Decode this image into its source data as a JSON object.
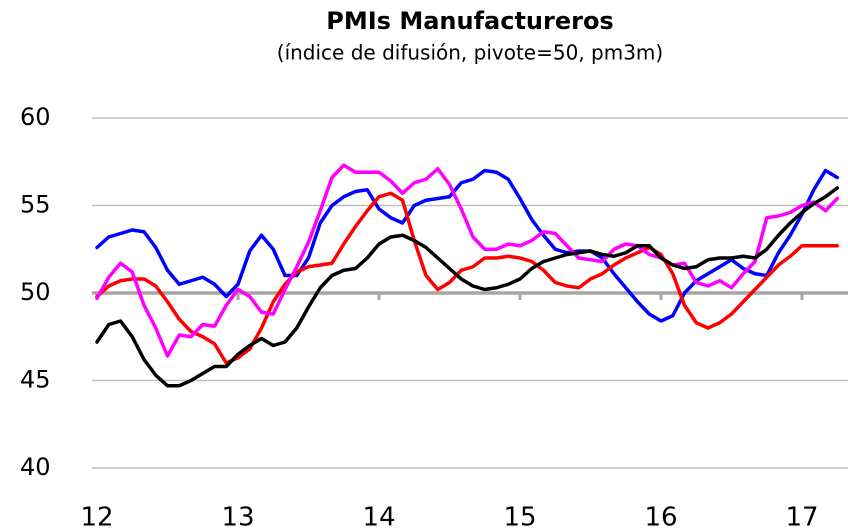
{
  "chart_data": {
    "type": "line",
    "title": "PMIs Manufactureros",
    "subtitle": "(índice de difusión, pivote=50, pm3m)",
    "categories": [
      "12",
      null,
      null,
      null,
      null,
      null,
      null,
      null,
      null,
      null,
      null,
      null,
      "13",
      null,
      null,
      null,
      null,
      null,
      null,
      null,
      null,
      null,
      null,
      null,
      "14",
      null,
      null,
      null,
      null,
      null,
      null,
      null,
      null,
      null,
      null,
      null,
      "15",
      null,
      null,
      null,
      null,
      null,
      null,
      null,
      null,
      null,
      null,
      null,
      "16",
      null,
      null,
      null,
      null,
      null,
      null,
      null,
      null,
      null,
      null,
      null,
      "17",
      null,
      null,
      null
    ],
    "series": [
      {
        "color": "#0000ff",
        "values": [
          52.6,
          53.2,
          53.4,
          53.6,
          53.5,
          52.6,
          51.3,
          50.5,
          50.7,
          50.9,
          50.5,
          49.8,
          50.5,
          52.4,
          53.3,
          52.5,
          51.0,
          51.0,
          52.0,
          54.0,
          55.0,
          55.5,
          55.8,
          55.9,
          54.8,
          54.3,
          54.0,
          55.0,
          55.3,
          55.4,
          55.5,
          56.3,
          56.5,
          57.0,
          56.9,
          56.5,
          55.4,
          54.2,
          53.3,
          52.5,
          52.3,
          52.4,
          52.4,
          52.0,
          51.1,
          50.3,
          49.5,
          48.8,
          48.4,
          48.7,
          50.0,
          50.7,
          51.1,
          51.5,
          51.9,
          51.4,
          51.1,
          51.0,
          52.3,
          53.3,
          54.5,
          55.9,
          57.0,
          56.6
        ]
      },
      {
        "color": "#ff0000",
        "values": [
          49.8,
          50.4,
          50.7,
          50.8,
          50.8,
          50.4,
          49.5,
          48.5,
          47.8,
          47.5,
          47.1,
          46.0,
          46.3,
          46.8,
          48.0,
          49.5,
          50.5,
          51.2,
          51.5,
          51.6,
          51.7,
          52.8,
          53.8,
          54.7,
          55.5,
          55.7,
          55.3,
          53.0,
          51.0,
          50.2,
          50.6,
          51.3,
          51.5,
          52.0,
          52.0,
          52.1,
          52.0,
          51.8,
          51.3,
          50.6,
          50.4,
          50.3,
          50.8,
          51.1,
          51.6,
          52.0,
          52.3,
          52.6,
          52.2,
          51.1,
          49.3,
          48.3,
          48.0,
          48.3,
          48.8,
          49.5,
          50.2,
          50.9,
          51.6,
          52.1,
          52.7,
          52.7,
          52.7,
          52.7
        ]
      },
      {
        "color": "#ff00ff",
        "values": [
          49.7,
          50.9,
          51.7,
          51.2,
          49.3,
          48.0,
          46.4,
          47.6,
          47.5,
          48.2,
          48.1,
          49.3,
          50.2,
          49.8,
          48.9,
          48.8,
          50.2,
          51.5,
          52.9,
          54.7,
          56.6,
          57.3,
          56.9,
          56.9,
          56.9,
          56.4,
          55.7,
          56.3,
          56.5,
          57.1,
          56.2,
          54.8,
          53.2,
          52.5,
          52.5,
          52.8,
          52.7,
          53.0,
          53.5,
          53.4,
          52.7,
          52.0,
          51.9,
          51.8,
          52.5,
          52.8,
          52.7,
          52.2,
          52.0,
          51.6,
          51.7,
          50.6,
          50.4,
          50.7,
          50.3,
          51.1,
          51.8,
          54.3,
          54.4,
          54.6,
          55.0,
          55.2,
          54.7,
          55.4
        ]
      },
      {
        "color": "#000000",
        "values": [
          47.2,
          48.2,
          48.4,
          47.5,
          46.2,
          45.3,
          44.7,
          44.7,
          45.0,
          45.4,
          45.8,
          45.8,
          46.5,
          47.0,
          47.4,
          47.0,
          47.2,
          48.0,
          49.2,
          50.3,
          51.0,
          51.3,
          51.4,
          52.0,
          52.8,
          53.2,
          53.3,
          53.0,
          52.6,
          52.0,
          51.4,
          50.8,
          50.4,
          50.2,
          50.3,
          50.5,
          50.8,
          51.4,
          51.8,
          52.0,
          52.2,
          52.3,
          52.4,
          52.2,
          52.1,
          52.3,
          52.7,
          52.7,
          52.0,
          51.6,
          51.4,
          51.5,
          51.9,
          52.0,
          52.0,
          52.1,
          52.0,
          52.5,
          53.3,
          54.0,
          54.6,
          55.1,
          55.5,
          56.0
        ]
      }
    ],
    "ylim": [
      40,
      60
    ],
    "yticks": [
      40,
      45,
      50,
      55,
      60
    ],
    "grid": true,
    "baseline": 50
  }
}
